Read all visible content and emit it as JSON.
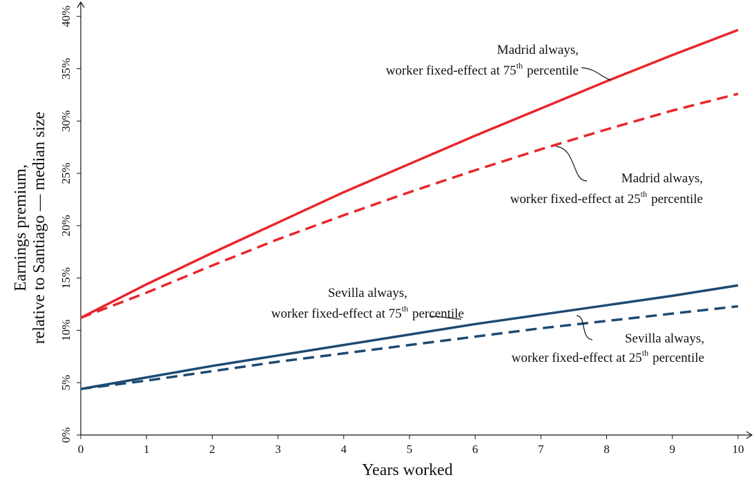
{
  "chart_data": {
    "type": "line",
    "xlabel": "Years worked",
    "ylabel": [
      "Earnings premium,",
      "relative to Santiago — median size"
    ],
    "x": [
      0,
      1,
      2,
      3,
      4,
      5,
      6,
      7,
      8,
      9,
      10
    ],
    "series": [
      {
        "color": "#e8262b",
        "dash": false,
        "values": [
          11.2,
          14.4,
          17.4,
          20.3,
          23.2,
          25.9,
          28.6,
          31.2,
          33.8,
          36.3,
          38.7
        ]
      },
      {
        "color": "#e8262b",
        "dash": true,
        "values": [
          11.2,
          13.6,
          16.2,
          18.7,
          21.0,
          23.2,
          25.3,
          27.3,
          29.2,
          31.0,
          32.6
        ]
      },
      {
        "color": "#1d4a72",
        "dash": false,
        "values": [
          4.4,
          5.5,
          6.6,
          7.6,
          8.6,
          9.6,
          10.6,
          11.5,
          12.4,
          13.3,
          14.3
        ]
      },
      {
        "color": "#1d4a72",
        "dash": true,
        "values": [
          4.4,
          5.2,
          6.1,
          7.0,
          7.8,
          8.6,
          9.4,
          10.2,
          10.9,
          11.6,
          12.3
        ]
      }
    ],
    "annotations": [
      {
        "line1": "Madrid always,",
        "line2": "worker fixed-effect at 75",
        "sup": "th",
        "tail": "percentile"
      },
      {
        "line1": "Madrid always,",
        "line2": "worker fixed-effect at 25",
        "sup": "th",
        "tail": "percentile"
      },
      {
        "line1": "Sevilla always,",
        "line2": "worker fixed-effect at 75",
        "sup": "th",
        "tail": "percentile"
      },
      {
        "line1": "Sevilla always,",
        "line2": "worker fixed-effect at 25",
        "sup": "th",
        "tail": "percentile"
      }
    ],
    "xlim": [
      0,
      10.2
    ],
    "ylim": [
      0,
      41.3
    ],
    "xticks": [
      0,
      1,
      2,
      3,
      4,
      5,
      6,
      7,
      8,
      9,
      10
    ],
    "yticks": [
      {
        "value": 0,
        "label": "0%"
      },
      {
        "value": 5,
        "label": "5%"
      },
      {
        "value": 10,
        "label": "10%"
      },
      {
        "value": 15,
        "label": "15%"
      },
      {
        "value": 20,
        "label": "20%"
      },
      {
        "value": 25,
        "label": "25%"
      },
      {
        "value": 30,
        "label": "30%"
      },
      {
        "value": 35,
        "label": "35%"
      },
      {
        "value": 40,
        "label": "40%"
      }
    ],
    "grid": false
  }
}
